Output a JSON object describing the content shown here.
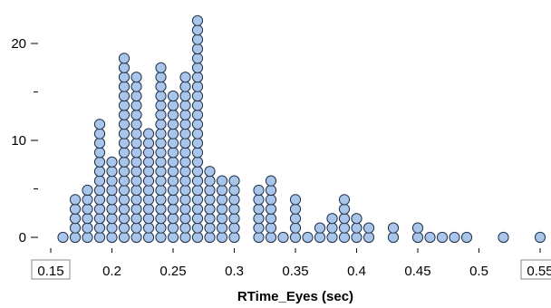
{
  "chart_data": {
    "type": "dot",
    "title": "",
    "xlabel": "RTime_Eyes (sec)",
    "ylabel": "",
    "xlim": [
      0.15,
      0.55
    ],
    "ylim": [
      0,
      20
    ],
    "x_ticks": [
      "0.15",
      "0.2",
      "0.25",
      "0.3",
      "0.35",
      "0.4",
      "0.45",
      "0.5",
      "0.55"
    ],
    "y_ticks": [
      "0",
      "10",
      "20"
    ],
    "x_end_labels_boxed": true,
    "grid": false,
    "marker_fill": "#a9c6ea",
    "marker_edge": "#20304a",
    "bins": [
      {
        "x": 0.16,
        "count": 1
      },
      {
        "x": 0.17,
        "count": 5
      },
      {
        "x": 0.18,
        "count": 6
      },
      {
        "x": 0.19,
        "count": 13
      },
      {
        "x": 0.2,
        "count": 9
      },
      {
        "x": 0.21,
        "count": 20
      },
      {
        "x": 0.22,
        "count": 18
      },
      {
        "x": 0.23,
        "count": 12
      },
      {
        "x": 0.24,
        "count": 19
      },
      {
        "x": 0.25,
        "count": 16
      },
      {
        "x": 0.26,
        "count": 18
      },
      {
        "x": 0.27,
        "count": 24
      },
      {
        "x": 0.28,
        "count": 8
      },
      {
        "x": 0.29,
        "count": 7
      },
      {
        "x": 0.3,
        "count": 7
      },
      {
        "x": 0.32,
        "count": 6
      },
      {
        "x": 0.33,
        "count": 7
      },
      {
        "x": 0.34,
        "count": 1
      },
      {
        "x": 0.35,
        "count": 5
      },
      {
        "x": 0.36,
        "count": 1
      },
      {
        "x": 0.37,
        "count": 2
      },
      {
        "x": 0.38,
        "count": 3
      },
      {
        "x": 0.39,
        "count": 5
      },
      {
        "x": 0.4,
        "count": 3
      },
      {
        "x": 0.41,
        "count": 2
      },
      {
        "x": 0.43,
        "count": 2
      },
      {
        "x": 0.45,
        "count": 2
      },
      {
        "x": 0.46,
        "count": 1
      },
      {
        "x": 0.47,
        "count": 1
      },
      {
        "x": 0.48,
        "count": 1
      },
      {
        "x": 0.49,
        "count": 1
      },
      {
        "x": 0.52,
        "count": 1
      },
      {
        "x": 0.55,
        "count": 1
      }
    ]
  }
}
